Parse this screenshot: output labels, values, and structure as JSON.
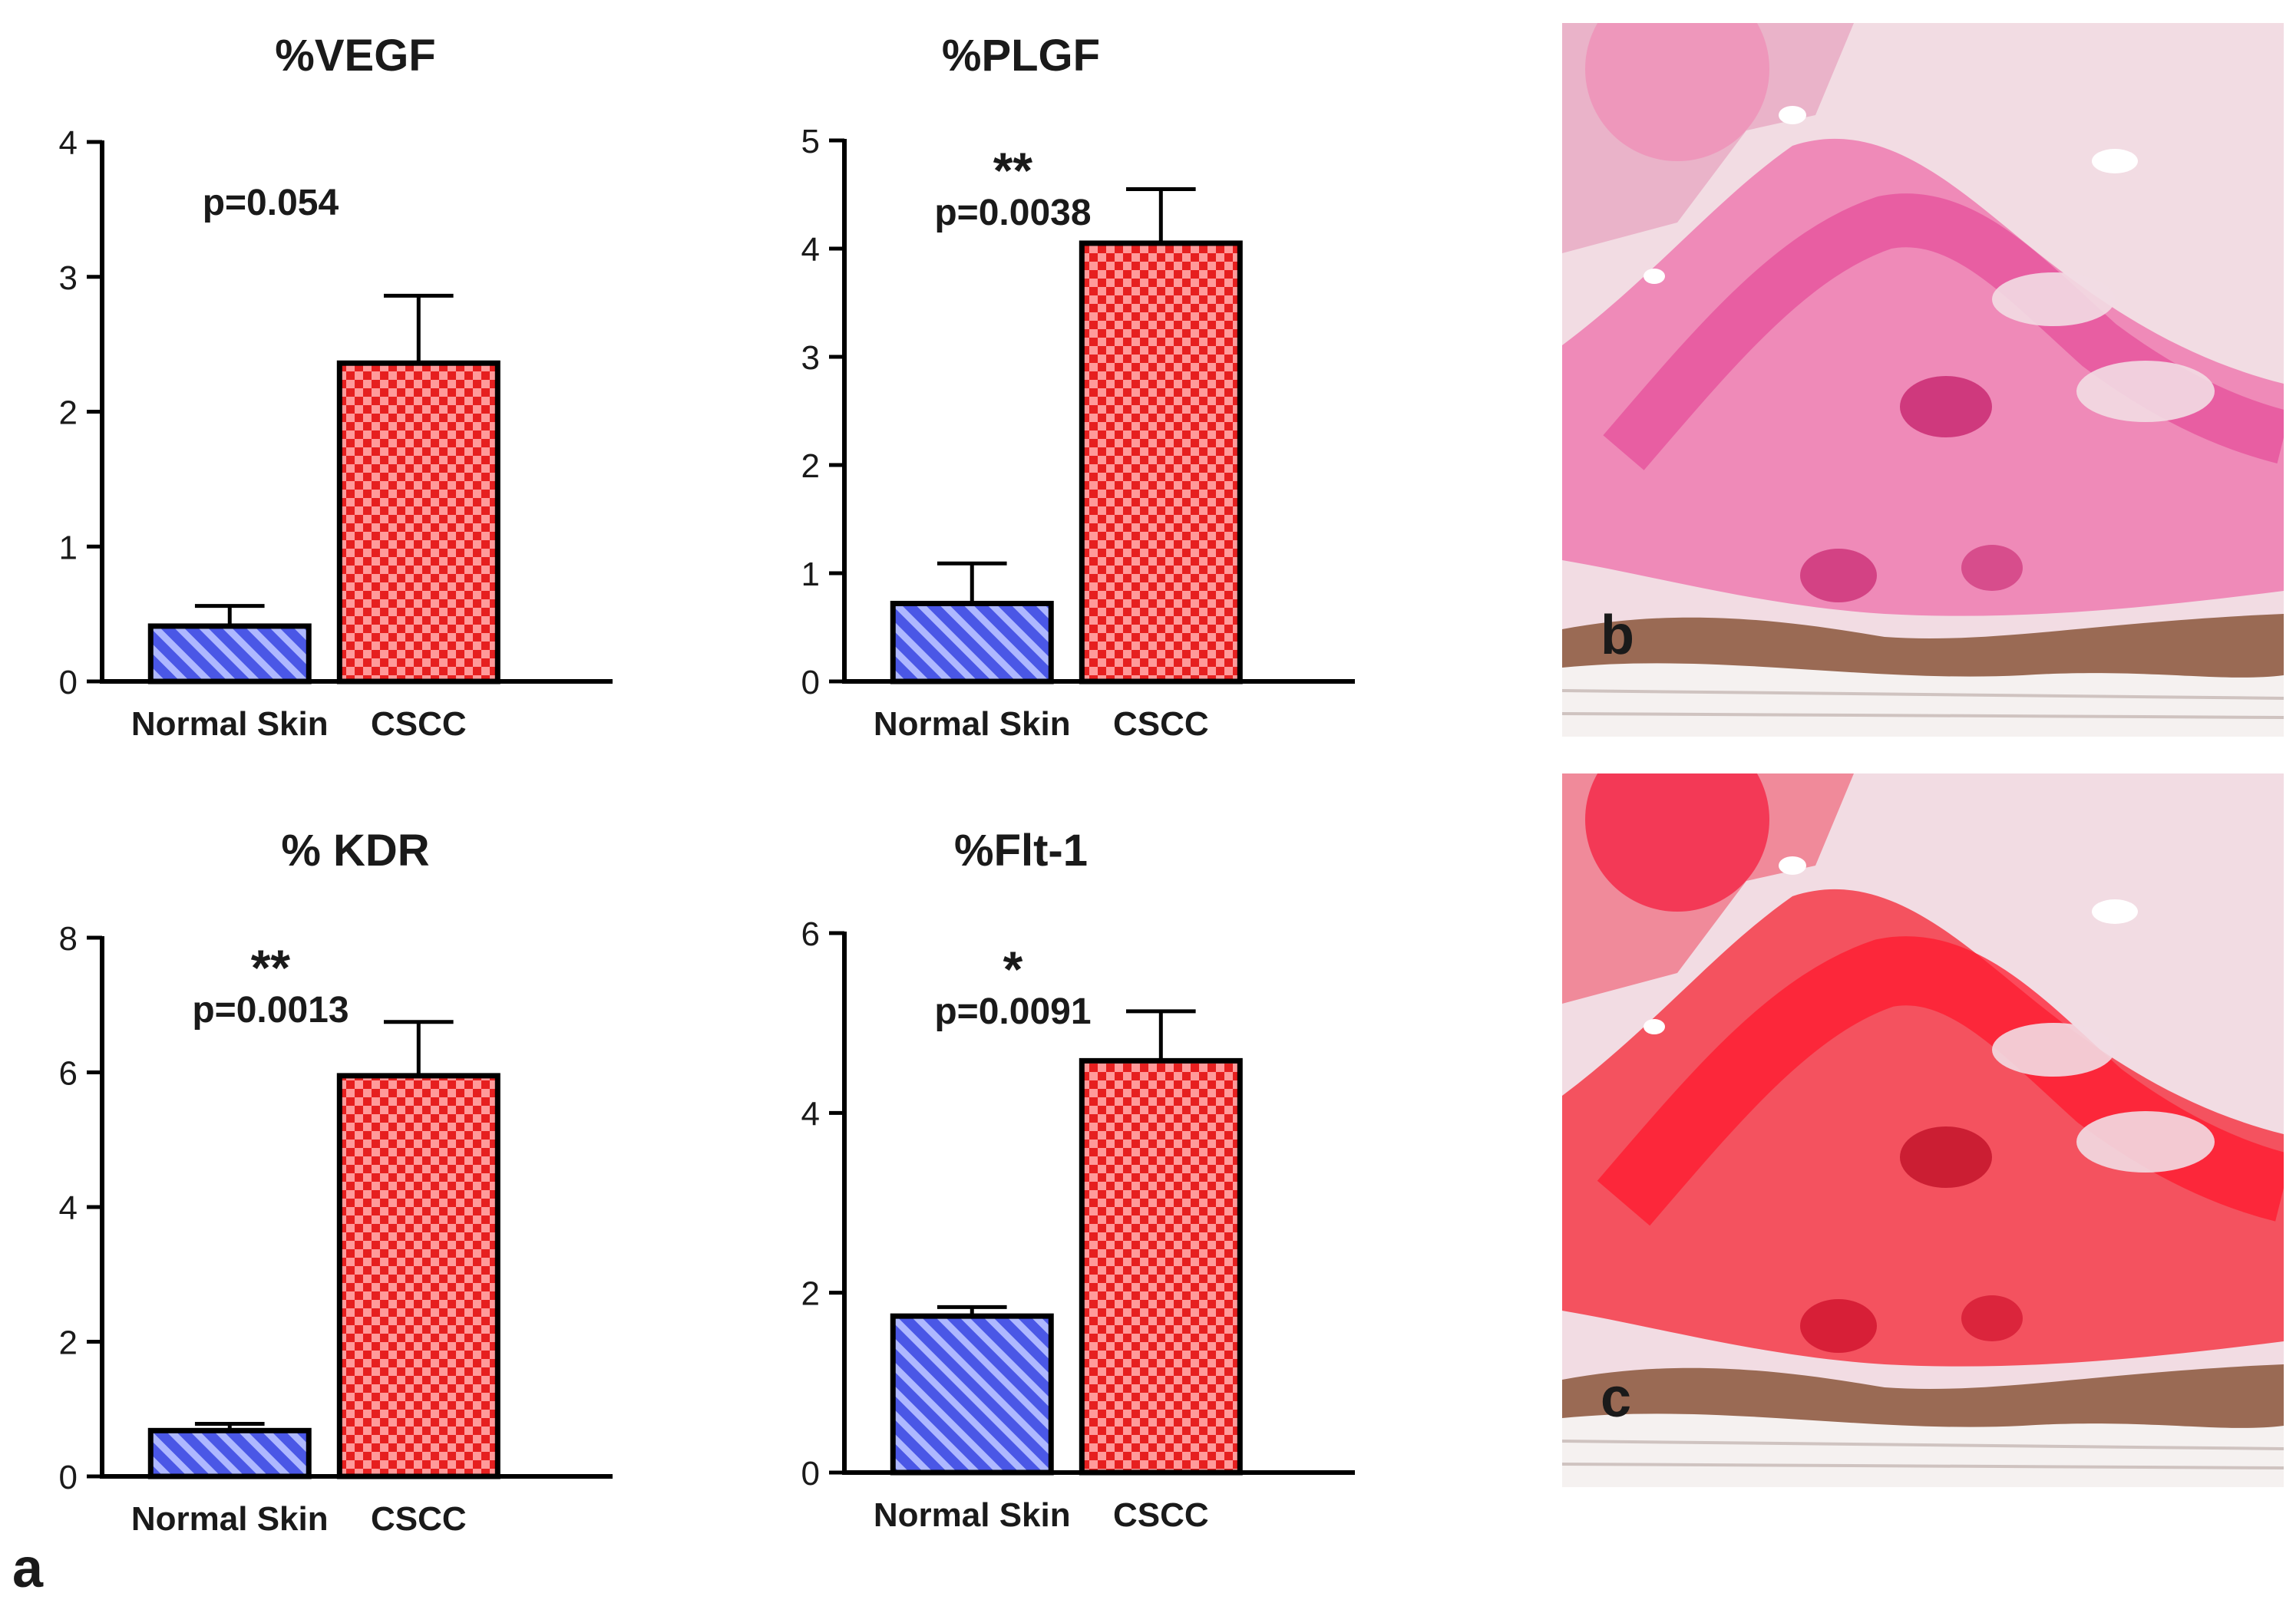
{
  "figure": {
    "panel_label": "a"
  },
  "chart_data": [
    {
      "type": "bar",
      "title": "%VEGF",
      "categories": [
        "Normal Skin",
        "CSCC"
      ],
      "values": [
        0.41,
        2.36
      ],
      "errors": [
        0.15,
        0.5
      ],
      "ylim": [
        0,
        4
      ],
      "yticks": [
        0,
        1,
        2,
        3,
        4
      ],
      "xlabel": "",
      "ylabel": "",
      "annotation": {
        "stars": "",
        "pvalue": "p=0.054"
      }
    },
    {
      "type": "bar",
      "title": "%PLGF",
      "categories": [
        "Normal Skin",
        "CSCC"
      ],
      "values": [
        0.72,
        4.05
      ],
      "errors": [
        0.37,
        0.5
      ],
      "ylim": [
        0,
        5
      ],
      "yticks": [
        0,
        1,
        2,
        3,
        4,
        5
      ],
      "xlabel": "",
      "ylabel": "",
      "annotation": {
        "stars": "**",
        "pvalue": "p=0.0038"
      }
    },
    {
      "type": "bar",
      "title": "% KDR",
      "categories": [
        "Normal Skin",
        "CSCC"
      ],
      "values": [
        0.68,
        5.95
      ],
      "errors": [
        0.1,
        0.8
      ],
      "ylim": [
        0,
        8
      ],
      "yticks": [
        0,
        2,
        4,
        6,
        8
      ],
      "xlabel": "",
      "ylabel": "",
      "annotation": {
        "stars": "**",
        "pvalue": "p=0.0013"
      }
    },
    {
      "type": "bar",
      "title": "%Flt-1",
      "categories": [
        "Normal Skin",
        "CSCC"
      ],
      "values": [
        1.74,
        4.58
      ],
      "errors": [
        0.1,
        0.55
      ],
      "ylim": [
        0,
        6
      ],
      "yticks": [
        0,
        2,
        4,
        6
      ],
      "xlabel": "",
      "ylabel": "",
      "annotation": {
        "stars": "*",
        "pvalue": "p=0.0091"
      }
    }
  ],
  "micrographs": [
    {
      "label": "b",
      "description": "CSCC section, moderate pink staining"
    },
    {
      "label": "c",
      "description": "CSCC section, intense red staining"
    }
  ],
  "colors": {
    "normal_fill": "#4a57e6",
    "normal_stripe": "#aeb8ff",
    "cscc_fill": "#e61f1f",
    "cscc_check": "#ff9a9a",
    "axis": "#000000",
    "text": "#1a1a1a"
  }
}
